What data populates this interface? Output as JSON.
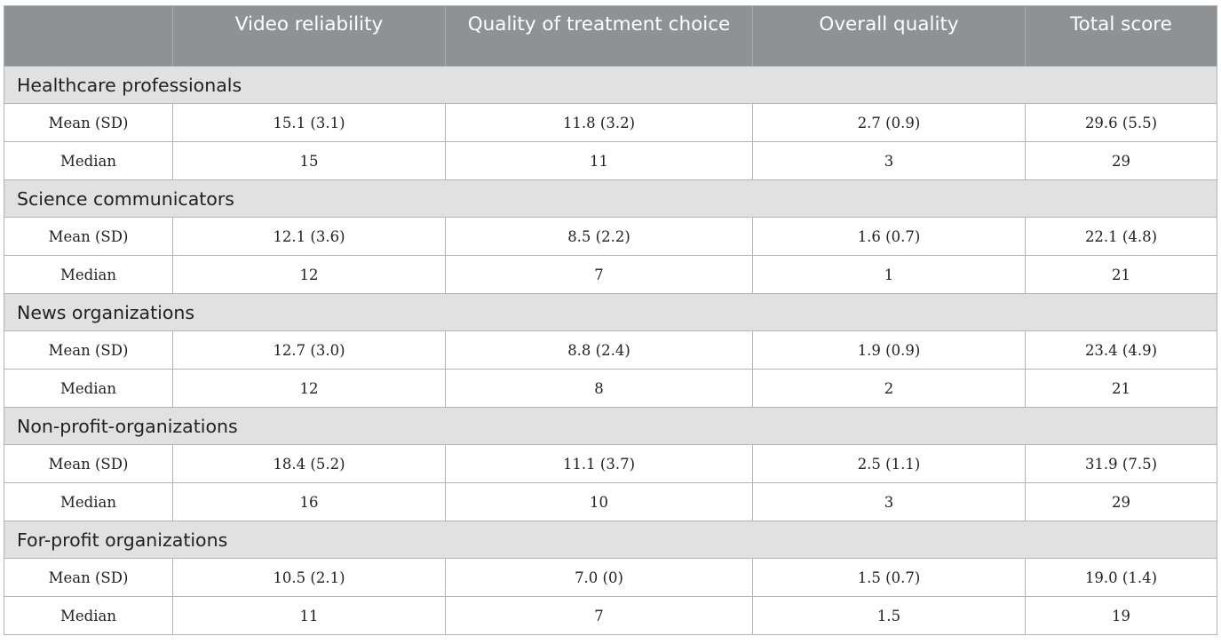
{
  "headers": [
    "",
    "Video reliability",
    "Quality of treatment choice",
    "Overall quality",
    "Total score"
  ],
  "groups": [
    {
      "name": "Healthcare professionals",
      "rows": [
        {
          "label": "Mean (SD)",
          "values": [
            "15.1 (3.1)",
            "11.8 (3.2)",
            "2.7 (0.9)",
            "29.6 (5.5)"
          ]
        },
        {
          "label": "Median",
          "values": [
            "15",
            "11",
            "3",
            "29"
          ]
        }
      ]
    },
    {
      "name": "Science communicators",
      "rows": [
        {
          "label": "Mean (SD)",
          "values": [
            "12.1 (3.6)",
            "8.5 (2.2)",
            "1.6 (0.7)",
            "22.1 (4.8)"
          ]
        },
        {
          "label": "Median",
          "values": [
            "12",
            "7",
            "1",
            "21"
          ]
        }
      ]
    },
    {
      "name": "News organizations",
      "rows": [
        {
          "label": "Mean (SD)",
          "values": [
            "12.7 (3.0)",
            "8.8 (2.4)",
            "1.9 (0.9)",
            "23.4 (4.9)"
          ]
        },
        {
          "label": "Median",
          "values": [
            "12",
            "8",
            "2",
            "21"
          ]
        }
      ]
    },
    {
      "name": "Non-profit-organizations",
      "rows": [
        {
          "label": "Mean (SD)",
          "values": [
            "18.4 (5.2)",
            "11.1 (3.7)",
            "2.5 (1.1)",
            "31.9 (7.5)"
          ]
        },
        {
          "label": "Median",
          "values": [
            "16",
            "10",
            "3",
            "29"
          ]
        }
      ]
    },
    {
      "name": "For-profit organizations",
      "rows": [
        {
          "label": "Mean (SD)",
          "values": [
            "10.5 (2.1)",
            "7.0 (0)",
            "1.5 (0.7)",
            "19.0 (1.4)"
          ]
        },
        {
          "label": "Median",
          "values": [
            "11",
            "7",
            "1.5",
            "19"
          ]
        }
      ]
    }
  ]
}
